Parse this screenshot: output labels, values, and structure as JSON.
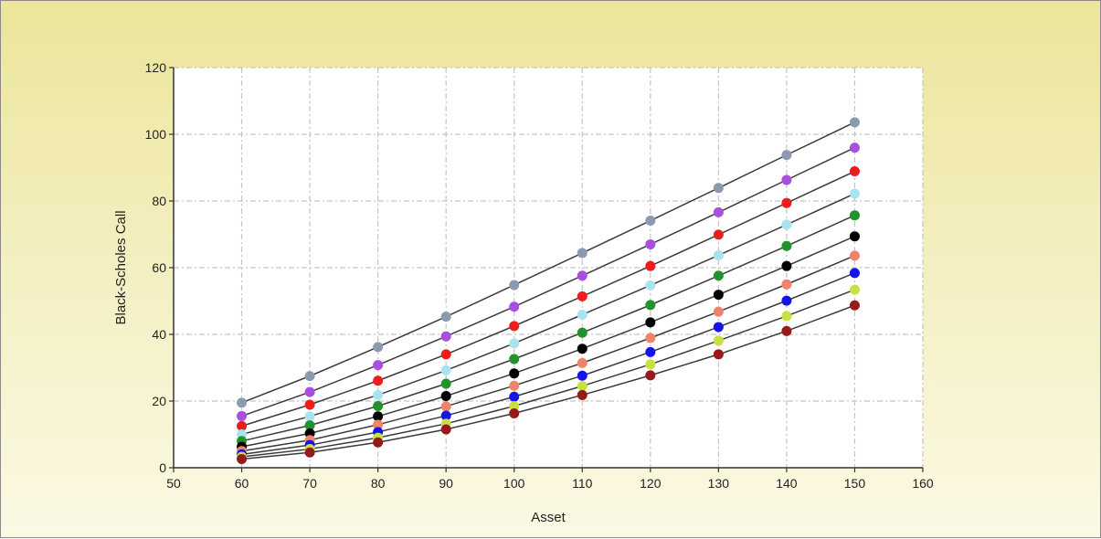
{
  "chart_data": {
    "type": "line",
    "title": "",
    "xlabel": "Asset",
    "ylabel": "Black-Scholes Call",
    "xlim": [
      50,
      160
    ],
    "ylim": [
      0,
      120
    ],
    "x_ticks": [
      50,
      60,
      70,
      80,
      90,
      100,
      110,
      120,
      130,
      140,
      150,
      160
    ],
    "y_ticks": [
      0,
      20,
      40,
      60,
      80,
      100,
      120
    ],
    "grid": true,
    "legend": "none",
    "x": [
      60,
      70,
      80,
      90,
      100,
      110,
      120,
      130,
      140,
      150
    ],
    "series": [
      {
        "color": "#8c9ab0",
        "values": [
          19.5,
          27.5,
          36.2,
          45.3,
          54.8,
          64.4,
          74.1,
          83.9,
          93.8,
          103.6
        ]
      },
      {
        "color": "#a84fe0",
        "values": [
          15.5,
          22.7,
          30.8,
          39.4,
          48.3,
          57.6,
          67.0,
          76.6,
          86.3,
          96.0
        ]
      },
      {
        "color": "#ee1c1c",
        "values": [
          12.5,
          18.9,
          26.1,
          34.0,
          42.5,
          51.4,
          60.5,
          69.9,
          79.4,
          88.9
        ]
      },
      {
        "color": "#a8e4f0",
        "values": [
          10.0,
          15.4,
          21.8,
          29.2,
          37.3,
          45.9,
          54.7,
          63.7,
          72.9,
          82.2
        ]
      },
      {
        "color": "#22922a",
        "values": [
          8.0,
          12.7,
          18.5,
          25.2,
          32.6,
          40.5,
          48.8,
          57.6,
          66.5,
          75.7
        ]
      },
      {
        "color": "#000000",
        "values": [
          6.3,
          10.3,
          15.4,
          21.5,
          28.3,
          35.7,
          43.6,
          51.9,
          60.5,
          69.4
        ]
      },
      {
        "color": "#f0846a",
        "values": [
          5.0,
          8.3,
          12.9,
          18.4,
          24.6,
          31.4,
          38.9,
          46.8,
          55.0,
          63.6
        ]
      },
      {
        "color": "#1414e8",
        "values": [
          4.0,
          6.8,
          10.7,
          15.6,
          21.3,
          27.6,
          34.7,
          42.2,
          50.1,
          58.4
        ]
      },
      {
        "color": "#c8e040",
        "values": [
          3.3,
          5.6,
          9.0,
          13.2,
          18.5,
          24.5,
          31.0,
          38.1,
          45.5,
          53.4
        ]
      },
      {
        "color": "#961a1a",
        "values": [
          2.6,
          4.6,
          7.6,
          11.5,
          16.3,
          21.8,
          27.7,
          34.0,
          41.0,
          48.7
        ]
      }
    ]
  }
}
